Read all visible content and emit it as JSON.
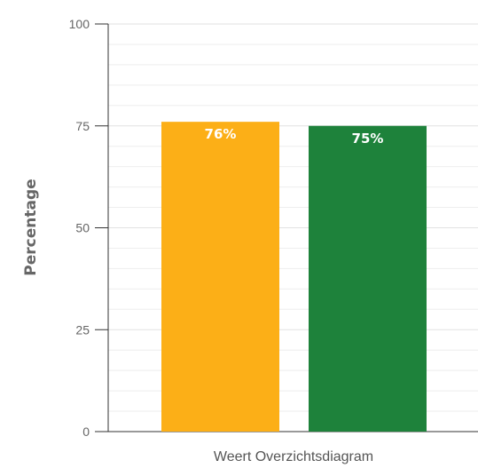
{
  "chart_data": {
    "type": "bar",
    "categories": [
      "Weert Overzichtsdiagram"
    ],
    "series": [
      {
        "values": [
          76
        ],
        "color": "#fcaf17",
        "label": "76%"
      },
      {
        "values": [
          75
        ],
        "color": "#1e823b",
        "label": "75%"
      }
    ],
    "ylabel": "Percentage",
    "xlabel": "",
    "ylim": [
      0,
      100
    ],
    "y_ticks": [
      0,
      25,
      50,
      75,
      100
    ],
    "y_tick_labels": [
      "0",
      "25",
      "50",
      "75",
      "100"
    ],
    "minor_grid_step": 5,
    "grid": true,
    "legend": "none"
  }
}
